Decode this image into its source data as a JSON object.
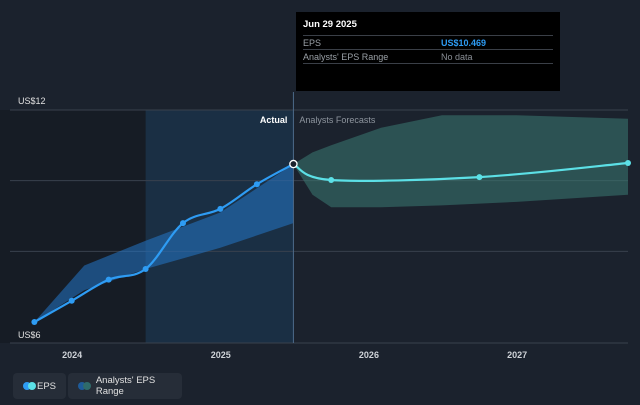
{
  "tooltip": {
    "date": "Jun 29 2025",
    "rows": [
      {
        "label": "EPS",
        "value": "US$10.469"
      },
      {
        "label": "Analysts' EPS Range",
        "value": "No data"
      }
    ]
  },
  "legend": {
    "eps": "EPS",
    "range": "Analysts' EPS Range"
  },
  "colors": {
    "background": "#1b222d",
    "eps_line": "#2e9cf4",
    "forecast_line": "#5ce0e6",
    "past_range": "#1e5b99",
    "forecast_range": "#2f5a5a"
  },
  "chart_data": {
    "type": "line",
    "title": "",
    "xlabel": "",
    "ylabel": "",
    "x_ticks": [
      "2024",
      "2025",
      "2026",
      "2027"
    ],
    "y_ticks": [
      "US$6",
      "US$12"
    ],
    "ylim": [
      6,
      12
    ],
    "xlim": [
      "2023-08-01",
      "2027-10-01"
    ],
    "grid": true,
    "sections": {
      "actual": "Actual",
      "forecast": "Analysts Forecasts"
    },
    "series": [
      {
        "name": "EPS",
        "points": [
          {
            "date": "2023-09-30",
            "value": 6.0
          },
          {
            "date": "2023-12-31",
            "value": 6.6
          },
          {
            "date": "2024-03-31",
            "value": 7.2
          },
          {
            "date": "2024-06-30",
            "value": 7.5
          },
          {
            "date": "2024-09-30",
            "value": 8.8
          },
          {
            "date": "2024-12-31",
            "value": 9.2
          },
          {
            "date": "2025-03-31",
            "value": 9.9
          },
          {
            "date": "2025-06-29",
            "value": 10.47
          }
        ]
      },
      {
        "name": "EPS",
        "points": [
          {
            "date": "2025-06-29",
            "value": 10.47
          },
          {
            "date": "2025-09-30",
            "value": 10.02
          },
          {
            "date": "2026-09-30",
            "value": 10.1
          },
          {
            "date": "2027-10-01",
            "value": 10.5
          }
        ]
      }
    ],
    "ranges": [
      {
        "name": "Analysts' EPS Range",
        "points": [
          {
            "date": "2023-09-30",
            "low": 6.0,
            "high": 6.0
          },
          {
            "date": "2024-01-31",
            "low": 6.9,
            "high": 7.6
          },
          {
            "date": "2024-06-30",
            "low": 7.5,
            "high": 8.3
          },
          {
            "date": "2024-12-31",
            "low": 8.1,
            "high": 9.1
          },
          {
            "date": "2025-06-29",
            "low": 8.8,
            "high": 10.47
          }
        ]
      },
      {
        "name": "Analysts' EPS Range",
        "points": [
          {
            "date": "2025-06-29",
            "low": 10.47,
            "high": 10.47
          },
          {
            "date": "2025-08-15",
            "low": 9.6,
            "high": 10.8
          },
          {
            "date": "2025-09-30",
            "low": 9.25,
            "high": 11.0
          },
          {
            "date": "2026-01-31",
            "low": 9.25,
            "high": 11.5
          },
          {
            "date": "2026-06-30",
            "low": 9.3,
            "high": 11.85
          },
          {
            "date": "2026-12-31",
            "low": 9.4,
            "high": 11.85
          },
          {
            "date": "2027-10-01",
            "low": 9.6,
            "high": 11.75
          }
        ]
      }
    ]
  }
}
